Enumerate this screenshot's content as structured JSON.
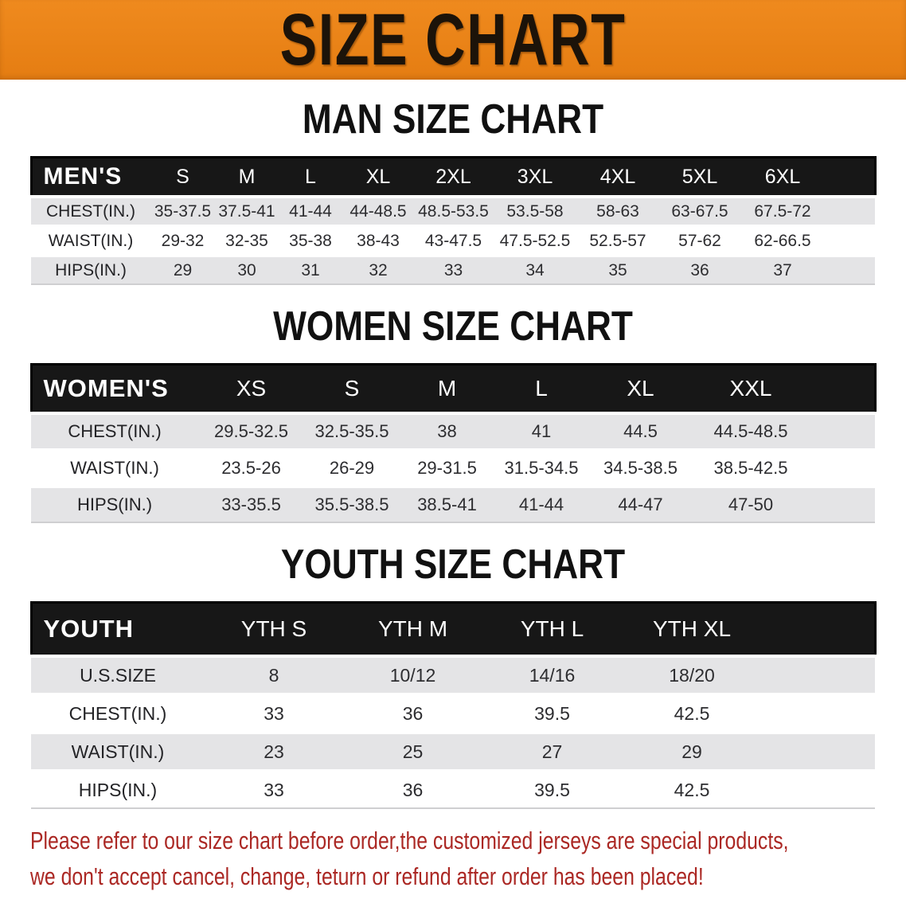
{
  "banner": {
    "title": "SIZE CHART"
  },
  "colors": {
    "banner_orange": "#E8811C",
    "table_header_black": "#171717",
    "row_stripe_gray": "#E4E4E6",
    "disclaimer_red": "#AB2824"
  },
  "sections": [
    {
      "title": "MAN SIZE CHART",
      "table": {
        "header_label": "MEN'S",
        "columns": [
          "S",
          "M",
          "L",
          "XL",
          "2XL",
          "3XL",
          "4XL",
          "5XL",
          "6XL"
        ],
        "rows": [
          {
            "label": "CHEST(IN.)",
            "values": [
              "35-37.5",
              "37.5-41",
              "41-44",
              "44-48.5",
              "48.5-53.5",
              "53.5-58",
              "58-63",
              "63-67.5",
              "67.5-72"
            ]
          },
          {
            "label": "WAIST(IN.)",
            "values": [
              "29-32",
              "32-35",
              "35-38",
              "38-43",
              "43-47.5",
              "47.5-52.5",
              "52.5-57",
              "57-62",
              "62-66.5"
            ]
          },
          {
            "label": "HIPS(IN.)",
            "values": [
              "29",
              "30",
              "31",
              "32",
              "33",
              "34",
              "35",
              "36",
              "37"
            ]
          }
        ]
      }
    },
    {
      "title": "WOMEN SIZE CHART",
      "table": {
        "header_label": "WOMEN'S",
        "columns": [
          "XS",
          "S",
          "M",
          "L",
          "XL",
          "XXL"
        ],
        "rows": [
          {
            "label": "CHEST(IN.)",
            "values": [
              "29.5-32.5",
              "32.5-35.5",
              "38",
              "41",
              "44.5",
              "44.5-48.5"
            ]
          },
          {
            "label": "WAIST(IN.)",
            "values": [
              "23.5-26",
              "26-29",
              "29-31.5",
              "31.5-34.5",
              "34.5-38.5",
              "38.5-42.5"
            ]
          },
          {
            "label": "HIPS(IN.)",
            "values": [
              "33-35.5",
              "35.5-38.5",
              "38.5-41",
              "41-44",
              "44-47",
              "47-50"
            ]
          }
        ]
      }
    },
    {
      "title": "YOUTH SIZE CHART",
      "table": {
        "header_label": "YOUTH",
        "columns": [
          "YTH S",
          "YTH M",
          "YTH L",
          "YTH XL"
        ],
        "rows": [
          {
            "label": "U.S.SIZE",
            "values": [
              "8",
              "10/12",
              "14/16",
              "18/20"
            ]
          },
          {
            "label": "CHEST(IN.)",
            "values": [
              "33",
              "36",
              "39.5",
              "42.5"
            ]
          },
          {
            "label": "WAIST(IN.)",
            "values": [
              "23",
              "25",
              "27",
              "29"
            ]
          },
          {
            "label": "HIPS(IN.)",
            "values": [
              "33",
              "36",
              "39.5",
              "42.5"
            ]
          }
        ]
      }
    }
  ],
  "footer": {
    "line1": "Please refer to our size chart before order,the customized jerseys are special products,",
    "line2": "we don't accept cancel, change, teturn or refund after order has been placed!"
  }
}
